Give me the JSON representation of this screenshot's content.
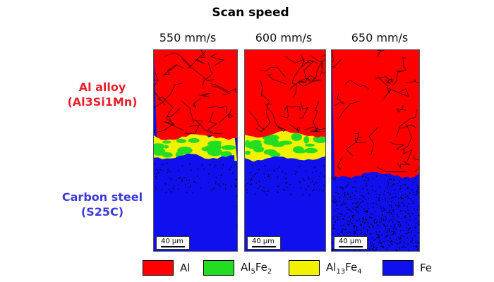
{
  "header": {
    "title": "Scan speed"
  },
  "columns": [
    {
      "label": "550 mm/s",
      "scale": "40 µm",
      "al_bottom": 0.43,
      "imc_top": 0.42,
      "fe_top": 0.53
    },
    {
      "label": "600 mm/s",
      "scale": "40 µm",
      "al_bottom": 0.42,
      "imc_top": 0.39,
      "fe_top": 0.54
    },
    {
      "label": "650 mm/s",
      "scale": "40 µm",
      "al_bottom": 0.62,
      "imc_top": 0.62,
      "fe_top": 0.62
    }
  ],
  "side_labels": {
    "top_line1": "Al alloy",
    "top_line2": "(Al3Si1Mn)",
    "bottom_line1": "Carbon steel",
    "bottom_line2": "(S25C)"
  },
  "colors": {
    "al": "#ff0000",
    "al5fe2": "#22dd22",
    "al13fe4": "#f2f200",
    "fe": "#1010ee",
    "label_red": "#e8202a",
    "label_blue": "#3a3ad8"
  },
  "legend": [
    {
      "name": "Al",
      "color": "#ff0000"
    },
    {
      "base": "Al",
      "sub1": "5",
      "mid": "Fe",
      "sub2": "2",
      "color": "#22dd22"
    },
    {
      "base": "Al",
      "sub1": "13",
      "mid": "Fe",
      "sub2": "4",
      "color": "#f2f200"
    },
    {
      "name": "Fe",
      "color": "#1010ee"
    }
  ]
}
